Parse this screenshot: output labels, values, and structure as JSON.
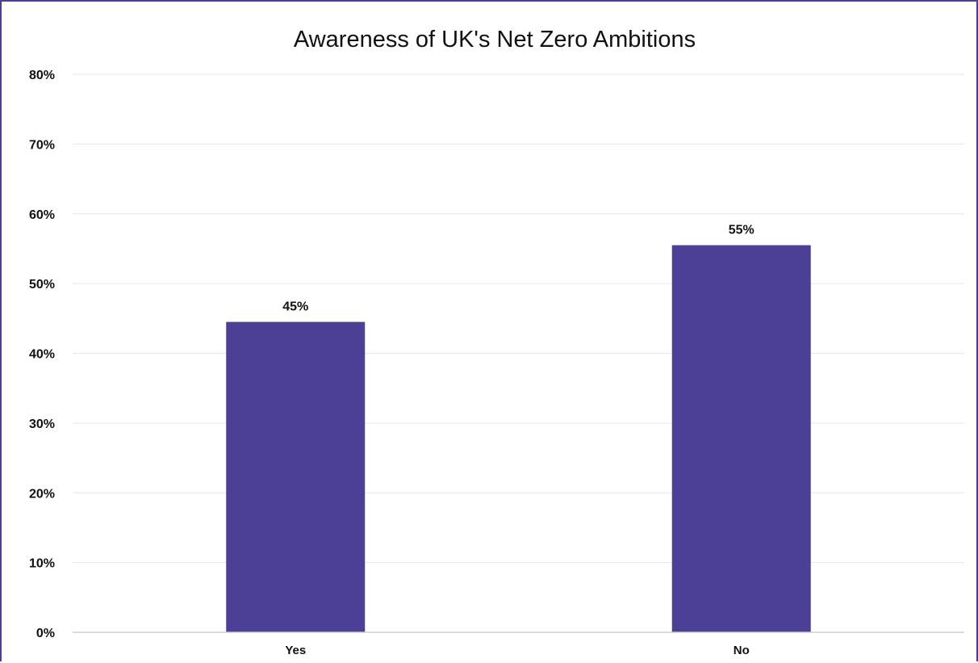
{
  "chart_data": {
    "type": "bar",
    "title": "Awareness of UK's Net Zero Ambitions",
    "xlabel": "",
    "ylabel": "",
    "categories": [
      "Yes",
      "No"
    ],
    "values": [
      44.5,
      55.5
    ],
    "data_labels": [
      "45%",
      "55%"
    ],
    "ylim": [
      0,
      80
    ],
    "yticks": [
      0,
      10,
      20,
      30,
      40,
      50,
      60,
      70,
      80
    ],
    "ytick_labels": [
      "0%",
      "10%",
      "20%",
      "30%",
      "40%",
      "50%",
      "60%",
      "70%",
      "80%"
    ],
    "grid": true,
    "legend": "none",
    "bar_color": "#4b3f96",
    "frame_color": "#4b3f96",
    "grid_color": "#e6e6e6"
  }
}
